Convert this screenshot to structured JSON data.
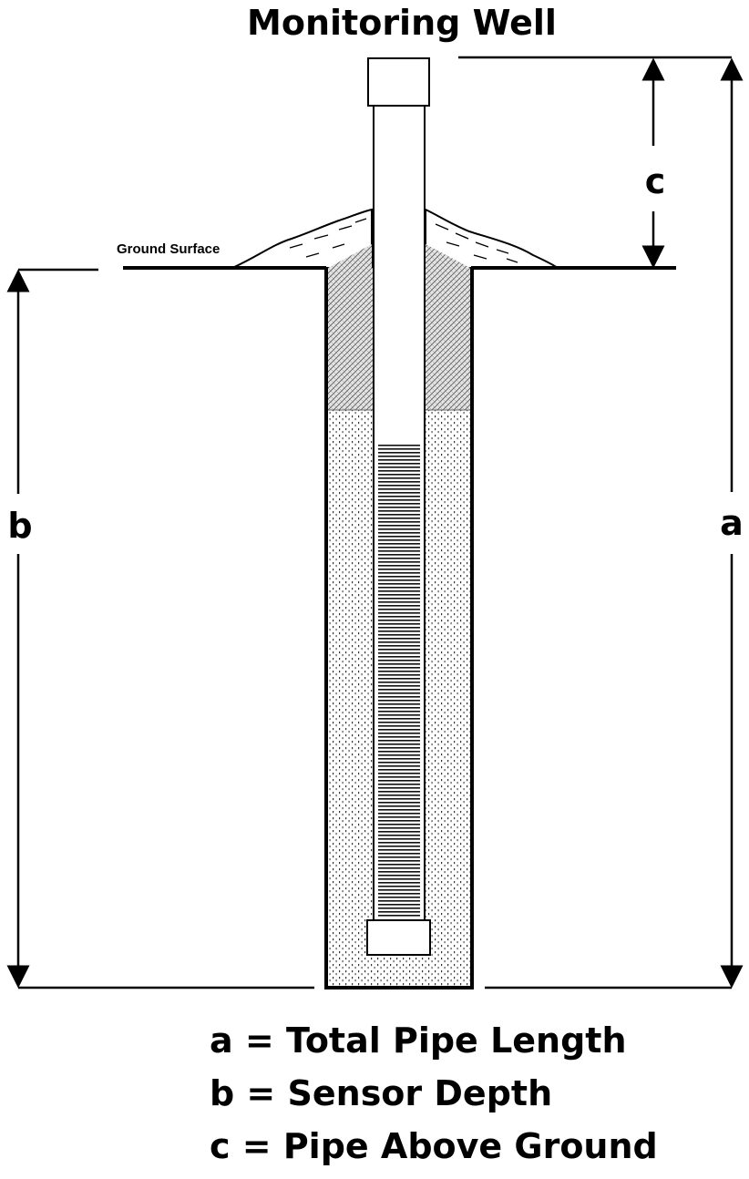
{
  "title": "Monitoring Well",
  "ground_label": "Ground Surface",
  "dimensions": {
    "a": "a",
    "b": "b",
    "c": "c"
  },
  "legend": [
    "a = Total Pipe Length",
    "b = Sensor Depth",
    "c = Pipe Above Ground"
  ],
  "colors": {
    "ink": "#000000",
    "background": "#ffffff",
    "seal_fill": "#cfcfcf"
  }
}
